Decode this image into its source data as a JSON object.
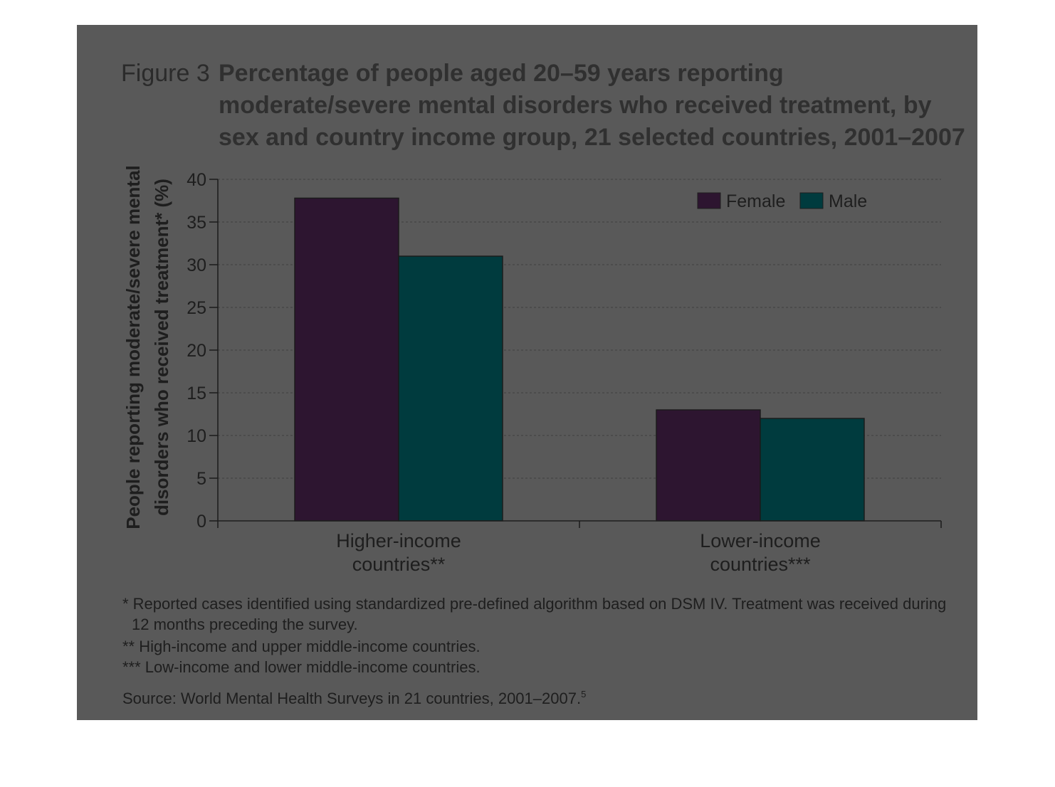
{
  "figure": {
    "label": "Figure 3",
    "title_lines": [
      "Percentage of people aged 20–59 years reporting",
      "moderate/severe mental disorders who received treatment, by",
      "sex and country income group, 21 selected countries, 2001–2007"
    ]
  },
  "chart_data": {
    "type": "bar",
    "categories": [
      [
        "Higher-income",
        "countries**"
      ],
      [
        "Lower-income",
        "countries***"
      ]
    ],
    "series": [
      {
        "name": "Female",
        "values": [
          37.8,
          13.0
        ],
        "color": "#2d1530"
      },
      {
        "name": "Male",
        "values": [
          31.0,
          12.0
        ],
        "color": "#003b3e"
      }
    ],
    "ylabel_lines": [
      "People reporting moderate/severe mental",
      "disorders who received treatment* (%)"
    ],
    "ylim": [
      0,
      40
    ],
    "yticks": [
      0,
      5,
      10,
      15,
      20,
      25,
      30,
      35,
      40
    ],
    "grid": true,
    "legend_position": "top-right"
  },
  "notes": [
    "* Reported cases identified using standardized pre-defined algorithm based on DSM IV. Treatment was received during",
    "12 months preceding the survey.",
    "** High-income and upper middle-income countries.",
    "*** Low-income and lower middle-income countries."
  ],
  "source": {
    "text": "Source: World Mental Health Surveys in 21 countries, 2001–2007.",
    "superscript": "5"
  },
  "colors": {
    "panel_background": "#595959",
    "page_background": "#ffffff"
  }
}
